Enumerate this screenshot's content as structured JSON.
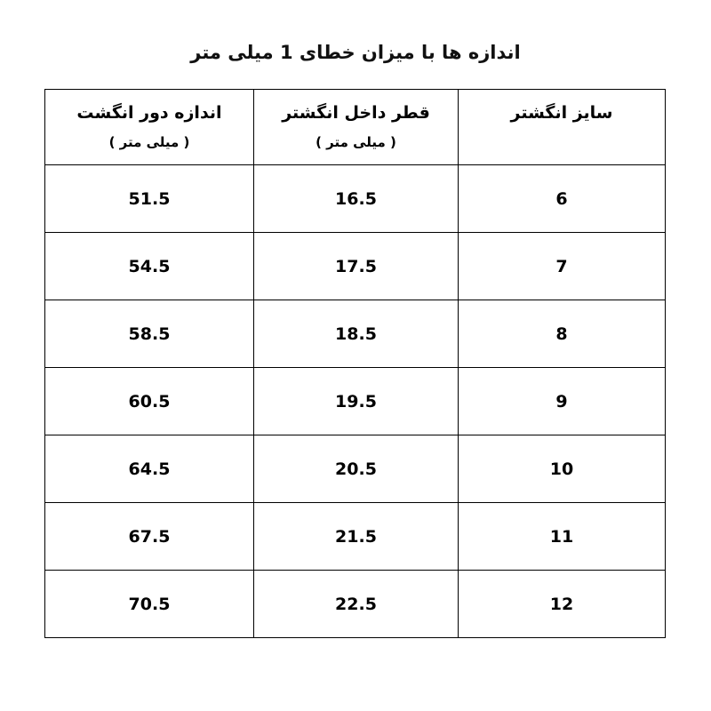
{
  "title": "اندازه ها با میزان خطای 1 میلی متر",
  "colors": {
    "background": "#ffffff",
    "text": "#000000",
    "border": "#000000"
  },
  "table": {
    "headers": [
      {
        "label": "سایز انگشتر",
        "sub": ""
      },
      {
        "label": "قطر داخل انگشتر",
        "sub": "( میلی متر )"
      },
      {
        "label": "اندازه دور انگشت",
        "sub": "( میلی متر )"
      }
    ],
    "rows": [
      {
        "size": "6",
        "inner_diameter": "16.5",
        "circumference": "51.5"
      },
      {
        "size": "7",
        "inner_diameter": "17.5",
        "circumference": "54.5"
      },
      {
        "size": "8",
        "inner_diameter": "18.5",
        "circumference": "58.5"
      },
      {
        "size": "9",
        "inner_diameter": "19.5",
        "circumference": "60.5"
      },
      {
        "size": "10",
        "inner_diameter": "20.5",
        "circumference": "64.5"
      },
      {
        "size": "11",
        "inner_diameter": "21.5",
        "circumference": "67.5"
      },
      {
        "size": "12",
        "inner_diameter": "22.5",
        "circumference": "70.5"
      }
    ]
  }
}
